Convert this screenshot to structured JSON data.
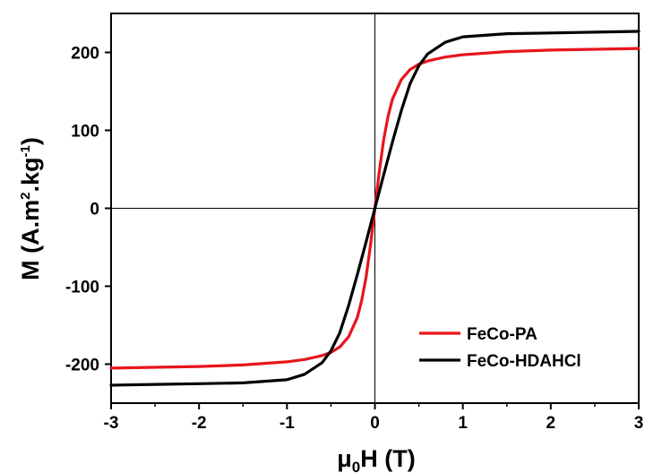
{
  "chart_data": {
    "type": "line",
    "title": "",
    "xlabel": {
      "prefix": "μ",
      "subscript": "0",
      "suffix": "H (T)"
    },
    "ylabel": {
      "prefix": "M (A.m",
      "sup1": "2",
      "mid": ".kg",
      "sup2": "-1",
      "suffix": ")"
    },
    "xlim": [
      -3,
      3
    ],
    "ylim": [
      -250,
      250
    ],
    "x_ticks": [
      -3,
      -2,
      -1,
      0,
      1,
      2,
      3
    ],
    "y_ticks": [
      -200,
      -100,
      0,
      100,
      200
    ],
    "x_tick_labels": [
      "-3",
      "-2",
      "-1",
      "0",
      "1",
      "2",
      "3"
    ],
    "y_tick_labels": [
      "-200",
      "-100",
      "0",
      "100",
      "200"
    ],
    "legend_position": "bottom-right",
    "zero_lines": true,
    "grid": false,
    "series": [
      {
        "name": "FeCo-PA",
        "color": "#e8141b",
        "x": [
          -3,
          -2.5,
          -2,
          -1.5,
          -1,
          -0.8,
          -0.6,
          -0.5,
          -0.4,
          -0.3,
          -0.2,
          -0.15,
          -0.1,
          -0.05,
          0,
          0.05,
          0.1,
          0.15,
          0.2,
          0.3,
          0.4,
          0.5,
          0.6,
          0.8,
          1,
          1.5,
          2,
          2.5,
          3
        ],
        "y": [
          -205,
          -204,
          -203,
          -201,
          -197,
          -194,
          -189,
          -185,
          -178,
          -165,
          -140,
          -118,
          -88,
          -47,
          0,
          47,
          88,
          118,
          140,
          165,
          178,
          185,
          189,
          194,
          197,
          201,
          203,
          204,
          205
        ]
      },
      {
        "name": "FeCo-HDAHCl",
        "color": "#000000",
        "x": [
          -3,
          -2.5,
          -2,
          -1.5,
          -1,
          -0.8,
          -0.6,
          -0.5,
          -0.4,
          -0.3,
          -0.2,
          -0.1,
          0,
          0.1,
          0.2,
          0.3,
          0.4,
          0.5,
          0.6,
          0.8,
          1,
          1.5,
          2,
          2.5,
          3
        ],
        "y": [
          -227,
          -226,
          -225,
          -224,
          -220,
          -213,
          -198,
          -183,
          -160,
          -125,
          -85,
          -43,
          0,
          43,
          85,
          125,
          160,
          183,
          198,
          213,
          220,
          224,
          225,
          226,
          227
        ]
      }
    ]
  }
}
